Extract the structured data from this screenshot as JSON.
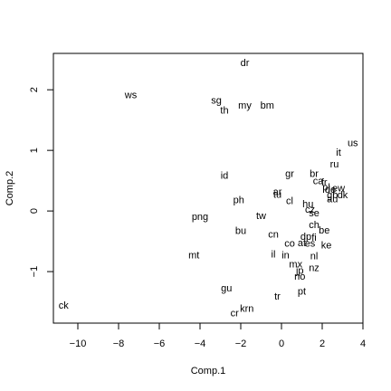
{
  "chart_data": {
    "type": "scatter",
    "title": "",
    "xlabel": "Comp.1",
    "ylabel": "Comp.2",
    "xlim": [
      -11.2,
      4.0
    ],
    "ylim": [
      -1.85,
      2.6
    ],
    "xticks": [
      -10,
      -8,
      -6,
      -4,
      -2,
      0,
      2,
      4
    ],
    "yticks": [
      -1,
      0,
      1,
      2
    ],
    "grid": false,
    "points": [
      {
        "label": "dr",
        "x": -1.8,
        "y": 2.45
      },
      {
        "label": "ws",
        "x": -7.4,
        "y": 1.92
      },
      {
        "label": "sg",
        "x": -3.2,
        "y": 1.83
      },
      {
        "label": "th",
        "x": -2.8,
        "y": 1.67
      },
      {
        "label": "my",
        "x": -1.8,
        "y": 1.75
      },
      {
        "label": "bm",
        "x": -0.7,
        "y": 1.75
      },
      {
        "label": "us",
        "x": 3.5,
        "y": 1.13
      },
      {
        "label": "it",
        "x": 2.8,
        "y": 0.97
      },
      {
        "label": "ru",
        "x": 2.6,
        "y": 0.78
      },
      {
        "label": "id",
        "x": -2.8,
        "y": 0.59
      },
      {
        "label": "gr",
        "x": 0.4,
        "y": 0.62
      },
      {
        "label": "br",
        "x": 1.6,
        "y": 0.62
      },
      {
        "label": "ca",
        "x": 1.8,
        "y": 0.5
      },
      {
        "label": "fr",
        "x": 2.1,
        "y": 0.48
      },
      {
        "label": "pl",
        "x": 2.2,
        "y": 0.4
      },
      {
        "label": "de",
        "x": 2.4,
        "y": 0.36
      },
      {
        "label": "ew",
        "x": 2.8,
        "y": 0.38
      },
      {
        "label": "gb",
        "x": 2.5,
        "y": 0.27
      },
      {
        "label": "dk",
        "x": 3.0,
        "y": 0.27
      },
      {
        "label": "au",
        "x": 2.5,
        "y": 0.2
      },
      {
        "label": "ar",
        "x": -0.2,
        "y": 0.32
      },
      {
        "label": "tu",
        "x": -0.2,
        "y": 0.28
      },
      {
        "label": "ph",
        "x": -2.1,
        "y": 0.19
      },
      {
        "label": "cl",
        "x": 0.4,
        "y": 0.17
      },
      {
        "label": "hu",
        "x": 1.3,
        "y": 0.12
      },
      {
        "label": "cz",
        "x": 1.4,
        "y": 0.03
      },
      {
        "label": "se",
        "x": 1.6,
        "y": -0.03
      },
      {
        "label": "tw",
        "x": -1.0,
        "y": -0.07
      },
      {
        "label": "png",
        "x": -4.0,
        "y": -0.09
      },
      {
        "label": "ch",
        "x": 1.6,
        "y": -0.22
      },
      {
        "label": "bu",
        "x": -2.0,
        "y": -0.32
      },
      {
        "label": "be",
        "x": 2.1,
        "y": -0.31
      },
      {
        "label": "cn",
        "x": -0.4,
        "y": -0.38
      },
      {
        "label": "dp",
        "x": 1.2,
        "y": -0.42
      },
      {
        "label": "fi",
        "x": 1.6,
        "y": -0.43
      },
      {
        "label": "co",
        "x": 0.4,
        "y": -0.53
      },
      {
        "label": "at",
        "x": 1.0,
        "y": -0.52
      },
      {
        "label": "es",
        "x": 1.4,
        "y": -0.53
      },
      {
        "label": "ke",
        "x": 2.2,
        "y": -0.56
      },
      {
        "label": "mt",
        "x": -4.3,
        "y": -0.72
      },
      {
        "label": "il",
        "x": -0.4,
        "y": -0.71
      },
      {
        "label": "in",
        "x": 0.2,
        "y": -0.72
      },
      {
        "label": "nl",
        "x": 1.6,
        "y": -0.74
      },
      {
        "label": "mx",
        "x": 0.7,
        "y": -0.87
      },
      {
        "label": "nz",
        "x": 1.6,
        "y": -0.93
      },
      {
        "label": "jp",
        "x": 0.9,
        "y": -0.98
      },
      {
        "label": "no",
        "x": 0.9,
        "y": -1.07
      },
      {
        "label": "gu",
        "x": -2.7,
        "y": -1.27
      },
      {
        "label": "pt",
        "x": 1.0,
        "y": -1.32
      },
      {
        "label": "tr",
        "x": -0.2,
        "y": -1.4
      },
      {
        "label": "ck",
        "x": -10.7,
        "y": -1.55
      },
      {
        "label": "krn",
        "x": -1.7,
        "y": -1.6
      },
      {
        "label": "cr",
        "x": -2.3,
        "y": -1.68
      }
    ]
  }
}
